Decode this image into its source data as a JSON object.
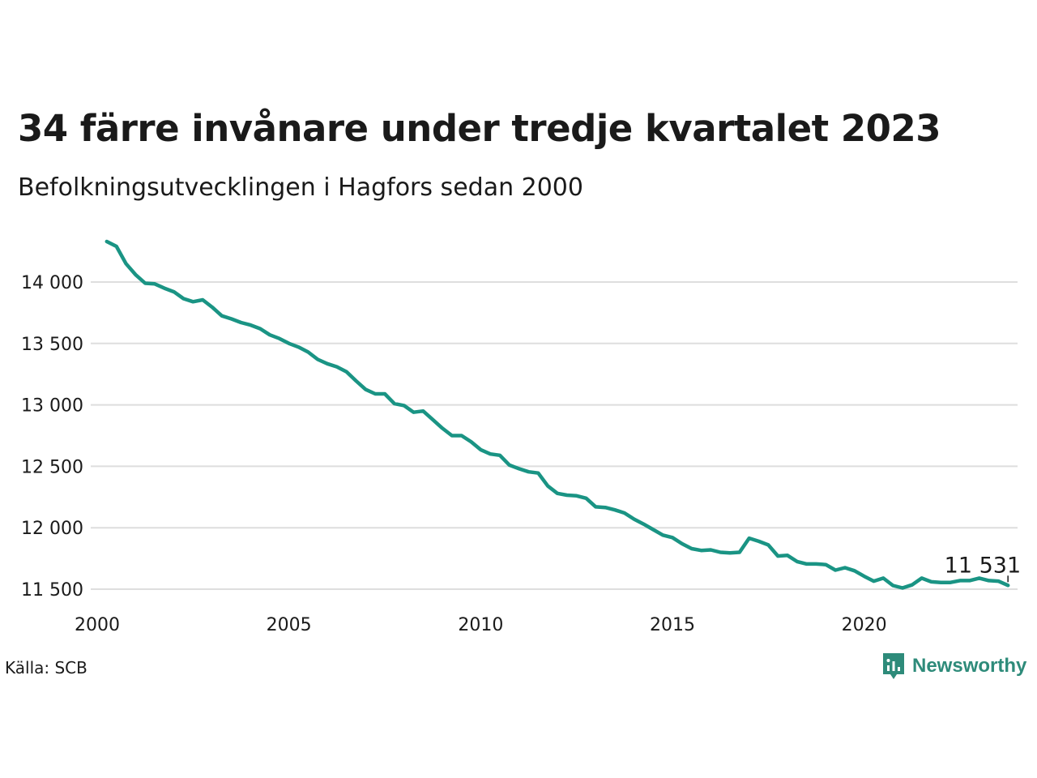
{
  "header": {
    "title": "34 färre invånare under tredje kvartalet 2023",
    "subtitle": "Befolkningsutvecklingen i Hagfors sedan 2000"
  },
  "footer": {
    "source": "Källa: SCB",
    "brand": "Newsworthy",
    "brand_color": "#2e8b7a"
  },
  "chart_data": {
    "type": "line",
    "title": "34 färre invånare under tredje kvartalet 2023",
    "subtitle": "Befolkningsutvecklingen i Hagfors sedan 2000",
    "xlabel": "",
    "ylabel": "",
    "xlim": [
      2000,
      2024
    ],
    "ylim": [
      11420,
      14400
    ],
    "x_ticks": [
      "2000",
      "2005",
      "2010",
      "2015",
      "2020"
    ],
    "y_ticks": [
      "11 500",
      "12 000",
      "12 500",
      "13 000",
      "13 500",
      "14 000"
    ],
    "grid": "horizontal",
    "line_color": "#1a9484",
    "end_label": "11 531",
    "series": [
      {
        "x": [
          2000.25,
          2000.5,
          2000.75,
          2001.0,
          2001.25,
          2001.5,
          2001.75,
          2002.0,
          2002.25,
          2002.5,
          2002.75,
          2003.0,
          2003.25,
          2003.5,
          2003.75,
          2004.0,
          2004.25,
          2004.5,
          2004.75,
          2005.0,
          2005.25,
          2005.5,
          2005.75,
          2006.0,
          2006.25,
          2006.5,
          2006.75,
          2007.0,
          2007.25,
          2007.5,
          2007.75,
          2008.0,
          2008.25,
          2008.5,
          2008.75,
          2009.0,
          2009.25,
          2009.5,
          2009.75,
          2010.0,
          2010.25,
          2010.5,
          2010.75,
          2011.0,
          2011.25,
          2011.5,
          2011.75,
          2012.0,
          2012.25,
          2012.5,
          2012.75,
          2013.0,
          2013.25,
          2013.5,
          2013.75,
          2014.0,
          2014.25,
          2014.5,
          2014.75,
          2015.0,
          2015.25,
          2015.5,
          2015.75,
          2016.0,
          2016.25,
          2016.5,
          2016.75,
          2017.0,
          2017.25,
          2017.5,
          2017.75,
          2018.0,
          2018.25,
          2018.5,
          2018.75,
          2019.0,
          2019.25,
          2019.5,
          2019.75,
          2020.0,
          2020.25,
          2020.5,
          2020.75,
          2021.0,
          2021.25,
          2021.5,
          2021.75,
          2022.0,
          2022.25,
          2022.5,
          2022.75,
          2023.0,
          2023.25,
          2023.5,
          2023.75
        ],
        "values": [
          14330,
          14290,
          14150,
          14060,
          13990,
          13985,
          13950,
          13920,
          13865,
          13840,
          13855,
          13795,
          13725,
          13700,
          13670,
          13650,
          13620,
          13570,
          13540,
          13500,
          13470,
          13430,
          13370,
          13335,
          13310,
          13270,
          13195,
          13125,
          13090,
          13090,
          13010,
          12995,
          12940,
          12950,
          12880,
          12810,
          12750,
          12750,
          12700,
          12635,
          12600,
          12590,
          12510,
          12480,
          12455,
          12445,
          12340,
          12280,
          12265,
          12260,
          12240,
          12170,
          12165,
          12145,
          12120,
          12070,
          12030,
          11985,
          11940,
          11920,
          11870,
          11830,
          11815,
          11820,
          11800,
          11795,
          11800,
          11915,
          11890,
          11860,
          11770,
          11775,
          11725,
          11705,
          11705,
          11700,
          11655,
          11675,
          11650,
          11605,
          11565,
          11590,
          11530,
          11510,
          11535,
          11590,
          11560,
          11555,
          11555,
          11570,
          11570,
          11590,
          11570,
          11565,
          11531
        ]
      }
    ]
  }
}
